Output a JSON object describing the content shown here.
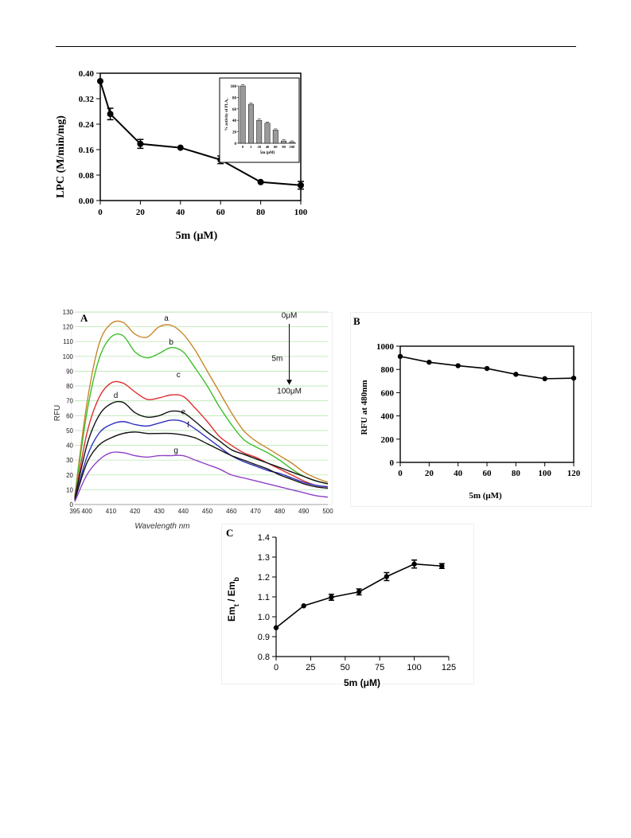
{
  "chart_data": [
    {
      "panel": "main",
      "type": "line",
      "xlabel": "5m (μM)",
      "ylabel": "LPC (M/min/mg)",
      "xlim": [
        0,
        100
      ],
      "ylim": [
        0,
        0.4
      ],
      "xticks": [
        "0",
        "20",
        "40",
        "60",
        "80",
        "100"
      ],
      "yticks": [
        "0.00",
        "0.08",
        "0.16",
        "0.24",
        "0.32",
        "0.40"
      ],
      "x": [
        0,
        5,
        20,
        40,
        60,
        80,
        100
      ],
      "y": [
        0.375,
        0.272,
        0.178,
        0.166,
        0.128,
        0.058,
        0.048
      ],
      "err": [
        0.0,
        0.018,
        0.014,
        0.0,
        0.012,
        0.0,
        0.012
      ],
      "inset": {
        "type": "bar",
        "ylabel": "% activity of PLA₂",
        "xlabel": "5m (μM)",
        "categories": [
          "0",
          "5",
          "20",
          "40",
          "60",
          "80",
          "100"
        ],
        "values": [
          100,
          68,
          40,
          35,
          23,
          4,
          2
        ],
        "ylim": [
          0,
          100
        ],
        "yticks": [
          "0",
          "20",
          "40",
          "60",
          "80",
          "100"
        ]
      }
    },
    {
      "panel": "A",
      "type": "line",
      "xlabel": "Wavelength nm",
      "ylabel": "RFU",
      "xlim": [
        395,
        500
      ],
      "ylim": [
        0,
        130
      ],
      "xticks": [
        "395",
        "400",
        "410",
        "420",
        "430",
        "440",
        "450",
        "460",
        "470",
        "480",
        "490",
        "500"
      ],
      "yticks": [
        "0",
        "10",
        "20",
        "30",
        "40",
        "50",
        "60",
        "70",
        "80",
        "90",
        "100",
        "110",
        "120",
        "130"
      ],
      "x": [
        395,
        400,
        405,
        410,
        415,
        420,
        425,
        430,
        435,
        440,
        445,
        450,
        455,
        460,
        465,
        470,
        475,
        480,
        485,
        490,
        495,
        500
      ],
      "series": [
        {
          "name": "a",
          "color": "#c8862a",
          "values": [
            6,
            68,
            108,
            122,
            123,
            115,
            113,
            120,
            121,
            115,
            104,
            90,
            76,
            62,
            50,
            43,
            38,
            33,
            28,
            22,
            18,
            15
          ]
        },
        {
          "name": "b",
          "color": "#3cbf2a",
          "values": [
            5,
            62,
            98,
            113,
            114,
            103,
            99,
            102,
            106,
            103,
            92,
            80,
            66,
            54,
            44,
            39,
            35,
            30,
            24,
            19,
            16,
            14
          ]
        },
        {
          "name": "c",
          "color": "#e03030",
          "values": [
            4,
            48,
            72,
            82,
            82,
            76,
            71,
            72,
            74,
            73,
            65,
            56,
            46,
            40,
            35,
            32,
            28,
            24,
            20,
            16,
            13,
            12
          ]
        },
        {
          "name": "d",
          "color": "#111111",
          "values": [
            4,
            40,
            60,
            68,
            69,
            62,
            59,
            60,
            63,
            62,
            56,
            49,
            43,
            37,
            34,
            31,
            28,
            25,
            22,
            19,
            16,
            14
          ]
        },
        {
          "name": "e",
          "color": "#3030c0",
          "values": [
            3,
            32,
            48,
            54,
            56,
            54,
            53,
            55,
            57,
            56,
            51,
            45,
            39,
            33,
            29,
            26,
            23,
            21,
            18,
            15,
            13,
            12
          ]
        },
        {
          "name": "f",
          "color": "#111111",
          "values": [
            3,
            28,
            40,
            45,
            48,
            49,
            48,
            48,
            48,
            47,
            45,
            41,
            37,
            33,
            30,
            27,
            24,
            20,
            17,
            14,
            12,
            11
          ]
        },
        {
          "name": "g",
          "color": "#9040c8",
          "values": [
            2,
            20,
            30,
            35,
            35,
            33,
            32,
            33,
            33,
            33,
            30,
            27,
            24,
            20,
            18,
            16,
            14,
            12,
            10,
            8,
            6,
            5
          ]
        }
      ],
      "annotations": {
        "top": "0μM",
        "middle": "5m",
        "bottom": "100μM"
      }
    },
    {
      "panel": "B",
      "type": "line",
      "xlabel": "5m (μM)",
      "ylabel": "RFU at 480nm",
      "xlim": [
        0,
        120
      ],
      "ylim": [
        0,
        1000
      ],
      "xticks": [
        "0",
        "20",
        "40",
        "60",
        "80",
        "100",
        "120"
      ],
      "yticks": [
        "0",
        "200",
        "400",
        "600",
        "800",
        "1000"
      ],
      "x": [
        0,
        20,
        40,
        60,
        80,
        100,
        120
      ],
      "y": [
        912,
        862,
        832,
        808,
        758,
        720,
        725
      ]
    },
    {
      "panel": "C",
      "type": "line",
      "xlabel": "5m (μM)",
      "ylabel": "Em",
      "ylabel_sub1": "t",
      "ylabel_mid": " / Em",
      "ylabel_sub2": "b",
      "xlim": [
        0,
        125
      ],
      "ylim": [
        0.8,
        1.4
      ],
      "xticks": [
        "0",
        "25",
        "50",
        "75",
        "100",
        "125"
      ],
      "yticks": [
        "0.8",
        "0.9",
        "1.0",
        "1.1",
        "1.2",
        "1.3",
        "1.4"
      ],
      "x": [
        0,
        20,
        40,
        60,
        80,
        100,
        120
      ],
      "y": [
        0.945,
        1.055,
        1.098,
        1.125,
        1.202,
        1.265,
        1.255
      ],
      "err": [
        0.0,
        0.0,
        0.015,
        0.015,
        0.02,
        0.02,
        0.012
      ]
    }
  ],
  "panel_labels": {
    "a": "A",
    "b": "B",
    "c": "C"
  }
}
